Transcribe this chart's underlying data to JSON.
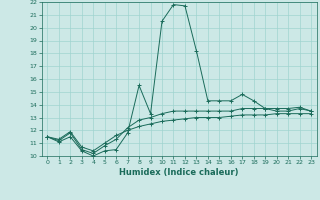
{
  "xlabel": "Humidex (Indice chaleur)",
  "bg_color": "#cce8e6",
  "grid_color": "#a0d4d0",
  "line_color": "#1a6b5a",
  "xlim": [
    -0.5,
    23.5
  ],
  "ylim": [
    10,
    22
  ],
  "xticks": [
    0,
    1,
    2,
    3,
    4,
    5,
    6,
    7,
    8,
    9,
    10,
    11,
    12,
    13,
    14,
    15,
    16,
    17,
    18,
    19,
    20,
    21,
    22,
    23
  ],
  "yticks": [
    10,
    11,
    12,
    13,
    14,
    15,
    16,
    17,
    18,
    19,
    20,
    21,
    22
  ],
  "series": [
    [
      11.5,
      11.1,
      11.5,
      10.4,
      10.0,
      10.4,
      10.5,
      11.8,
      15.5,
      13.3,
      20.5,
      21.8,
      21.7,
      18.2,
      14.3,
      14.3,
      14.3,
      14.8,
      14.3,
      13.7,
      13.5,
      13.5,
      13.7,
      13.5
    ],
    [
      11.5,
      11.2,
      11.8,
      10.5,
      10.2,
      10.8,
      11.3,
      12.2,
      12.8,
      13.0,
      13.3,
      13.5,
      13.5,
      13.5,
      13.5,
      13.5,
      13.5,
      13.7,
      13.7,
      13.7,
      13.7,
      13.7,
      13.8,
      13.5
    ],
    [
      11.5,
      11.3,
      11.9,
      10.7,
      10.4,
      11.0,
      11.6,
      12.0,
      12.3,
      12.5,
      12.7,
      12.8,
      12.9,
      13.0,
      13.0,
      13.0,
      13.1,
      13.2,
      13.2,
      13.2,
      13.3,
      13.3,
      13.3,
      13.3
    ]
  ]
}
